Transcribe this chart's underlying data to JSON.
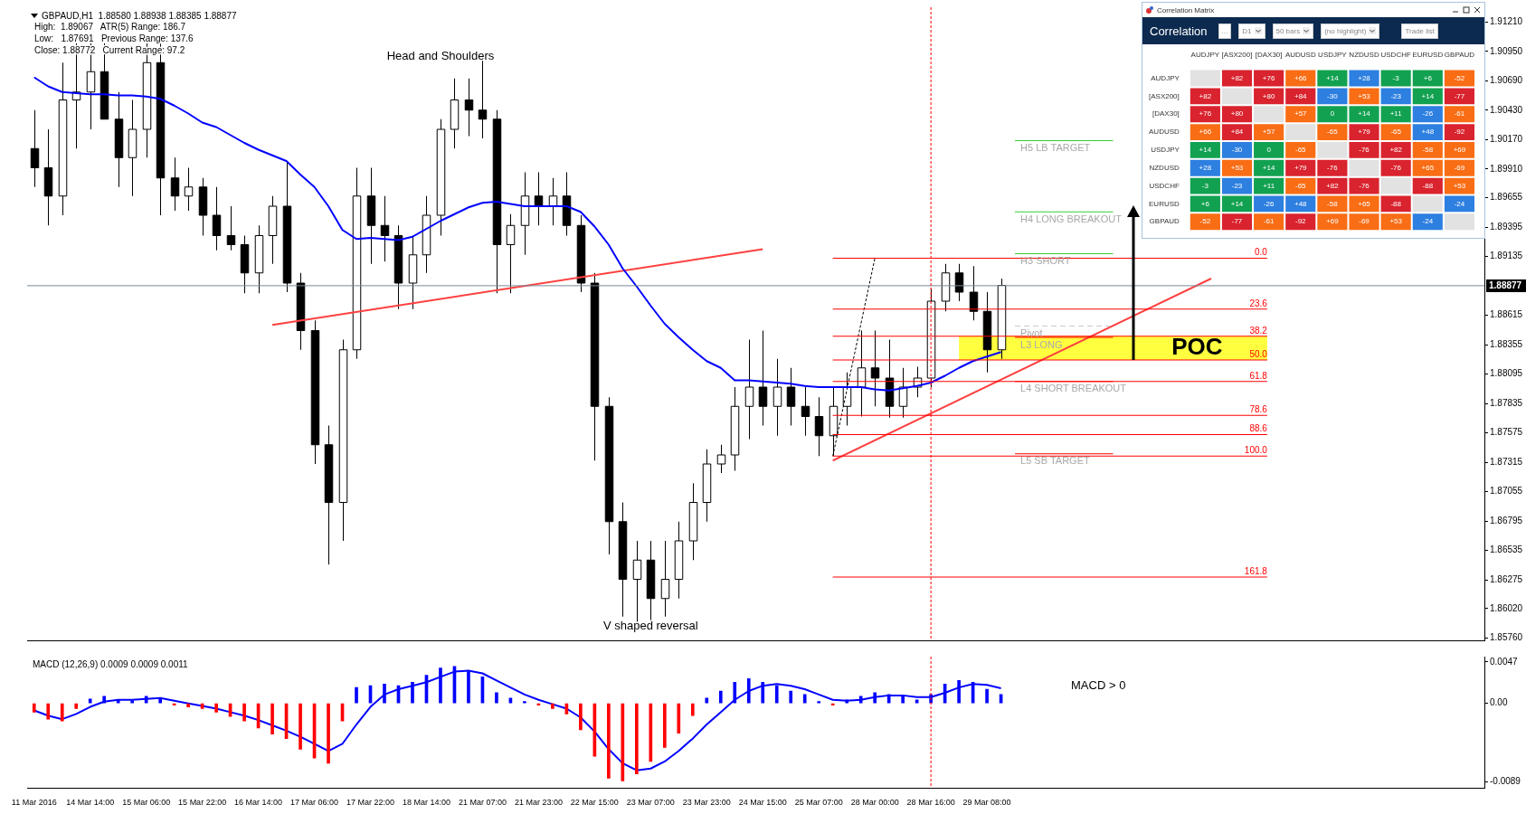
{
  "chart_data": [
    {
      "type": "candlestick",
      "title": "GBPAUD,H1  1.88580 1.88938 1.88385 1.88877",
      "annotations": [
        "High:  1.89067   ATR(5) Range: 186.7",
        "Low:   1.87691   Previous Range: 137.6",
        "Close: 1.88772   Current Range: 97.2",
        "Head and Shoulders",
        "V shaped reversal",
        {
          "text": "0.0",
          "y": 1.8912
        },
        {
          "text": "23.6",
          "y": 1.8867
        },
        {
          "text": "38.2",
          "y": 1.8843
        },
        {
          "text": "50.0",
          "y": 1.8822
        },
        {
          "text": "61.8",
          "y": 1.8803
        },
        {
          "text": "78.6",
          "y": 1.8773
        },
        {
          "text": "88.6",
          "y": 1.8756
        },
        {
          "text": "100.0",
          "y": 1.8737
        },
        {
          "text": "161.8",
          "y": 1.863
        }
      ],
      "categories": [
        "11 Mar 2016",
        null,
        null,
        null,
        "14 Mar 14:00",
        null,
        null,
        null,
        "15 Mar 06:00",
        null,
        null,
        null,
        "15 Mar 22:00",
        null,
        null,
        null,
        "16 Mar 14:00",
        null,
        null,
        null,
        "17 Mar 06:00",
        null,
        null,
        null,
        "17 Mar 22:00",
        null,
        null,
        null,
        "18 Mar 14:00",
        null,
        null,
        null,
        "21 Mar 07:00",
        null,
        null,
        null,
        "21 Mar 23:00",
        null,
        null,
        null,
        "22 Mar 15:00",
        null,
        null,
        null,
        "23 Mar 07:00",
        null,
        null,
        null,
        "23 Mar 23:00",
        null,
        null,
        null,
        "24 Mar 15:00",
        null,
        null,
        null,
        "25 Mar 07:00",
        null,
        null,
        null,
        "28 Mar 00:00",
        null,
        null,
        null,
        "28 Mar 16:00",
        null,
        null,
        null,
        "29 Mar 08:00",
        null,
        null,
        null,
        null,
        null,
        null,
        null,
        null,
        null,
        null,
        null,
        null,
        null,
        null,
        null,
        null,
        null,
        null,
        null,
        null,
        null,
        null,
        null,
        null,
        null,
        null,
        null,
        null,
        null,
        null,
        null,
        null,
        null,
        null,
        null
      ],
      "ohlc": [
        [
          1.9009,
          1.9043,
          1.8975,
          1.8992
        ],
        [
          1.8992,
          1.9026,
          1.8941,
          1.8967
        ],
        [
          1.8967,
          1.9085,
          1.895,
          1.9052
        ],
        [
          1.9052,
          1.9102,
          1.9009,
          1.9059
        ],
        [
          1.9059,
          1.9102,
          1.9026,
          1.9077
        ],
        [
          1.9077,
          1.9102,
          1.9035,
          1.9035
        ],
        [
          1.9035,
          1.9059,
          1.8975,
          1.9001
        ],
        [
          1.9001,
          1.9052,
          1.8967,
          1.9026
        ],
        [
          1.9026,
          1.9102,
          1.9001,
          1.9085
        ],
        [
          1.9085,
          1.9102,
          1.895,
          1.8983
        ],
        [
          1.8983,
          1.9001,
          1.8954,
          1.8967
        ],
        [
          1.8967,
          1.8992,
          1.8954,
          1.8975
        ],
        [
          1.8975,
          1.8983,
          1.8932,
          1.895
        ],
        [
          1.895,
          1.8975,
          1.8919,
          1.8932
        ],
        [
          1.8932,
          1.8958,
          1.8919,
          1.8924
        ],
        [
          1.8924,
          1.8932,
          1.8881,
          1.8899
        ],
        [
          1.8899,
          1.8941,
          1.8881,
          1.8932
        ],
        [
          1.8932,
          1.8967,
          1.8907,
          1.8958
        ],
        [
          1.8958,
          1.8997,
          1.8882,
          1.889
        ],
        [
          1.889,
          1.8899,
          1.8831,
          1.8848
        ],
        [
          1.8848,
          1.8857,
          1.873,
          1.8747
        ],
        [
          1.8747,
          1.8764,
          1.8641,
          1.8696
        ],
        [
          1.8696,
          1.884,
          1.8662,
          1.8831
        ],
        [
          1.8831,
          1.8992,
          1.8823,
          1.8967
        ],
        [
          1.8967,
          1.8992,
          1.8907,
          1.8941
        ],
        [
          1.8941,
          1.8967,
          1.8909,
          1.8932
        ],
        [
          1.8932,
          1.8941,
          1.8867,
          1.889
        ],
        [
          1.889,
          1.8932,
          1.8867,
          1.8915
        ],
        [
          1.8915,
          1.8967,
          1.8899,
          1.895
        ],
        [
          1.895,
          1.9035,
          1.8932,
          1.9026
        ],
        [
          1.9026,
          1.9071,
          1.9009,
          1.9052
        ],
        [
          1.9052,
          1.9071,
          1.902,
          1.9043
        ],
        [
          1.9043,
          1.9094,
          1.9018,
          1.9035
        ],
        [
          1.9035,
          1.9043,
          1.8881,
          1.8924
        ],
        [
          1.8924,
          1.8951,
          1.8881,
          1.8941
        ],
        [
          1.8941,
          1.8988,
          1.8915,
          1.8967
        ],
        [
          1.8967,
          1.8988,
          1.8941,
          1.8958
        ],
        [
          1.8958,
          1.8983,
          1.8941,
          1.8967
        ],
        [
          1.8967,
          1.8988,
          1.8932,
          1.8941
        ],
        [
          1.8941,
          1.895,
          1.8882,
          1.889
        ],
        [
          1.889,
          1.8899,
          1.8733,
          1.8781
        ],
        [
          1.8781,
          1.8789,
          1.865,
          1.8679
        ],
        [
          1.8679,
          1.8696,
          1.8595,
          1.8628
        ],
        [
          1.8628,
          1.8662,
          1.8585,
          1.8645
        ],
        [
          1.8645,
          1.8662,
          1.8585,
          1.8611
        ],
        [
          1.8611,
          1.8662,
          1.8595,
          1.8628
        ],
        [
          1.8628,
          1.8679,
          1.8611,
          1.8662
        ],
        [
          1.8662,
          1.8713,
          1.8645,
          1.8696
        ],
        [
          1.8696,
          1.8743,
          1.8679,
          1.873
        ],
        [
          1.873,
          1.8747,
          1.8722,
          1.8738
        ],
        [
          1.8738,
          1.8798,
          1.8724,
          1.8781
        ],
        [
          1.8781,
          1.884,
          1.8752,
          1.8798
        ],
        [
          1.8798,
          1.8848,
          1.8764,
          1.8781
        ],
        [
          1.8781,
          1.8823,
          1.8755,
          1.8798
        ],
        [
          1.8798,
          1.8815,
          1.8764,
          1.8781
        ],
        [
          1.8781,
          1.8798,
          1.8755,
          1.8772
        ],
        [
          1.8772,
          1.8789,
          1.8737,
          1.8755
        ],
        [
          1.8755,
          1.8798,
          1.8737,
          1.8781
        ],
        [
          1.8781,
          1.8811,
          1.8764,
          1.8798
        ],
        [
          1.8798,
          1.8848,
          1.8772,
          1.8815
        ],
        [
          1.8815,
          1.8848,
          1.8781,
          1.8806
        ],
        [
          1.8806,
          1.884,
          1.8771,
          1.8781
        ],
        [
          1.8781,
          1.8815,
          1.8771,
          1.8798
        ],
        [
          1.8798,
          1.8816,
          1.8789,
          1.8806
        ],
        [
          1.8806,
          1.8885,
          1.8798,
          1.8874
        ],
        [
          1.8874,
          1.8907,
          1.8865,
          1.8899
        ],
        [
          1.8899,
          1.8907,
          1.8874,
          1.8882
        ],
        [
          1.8882,
          1.8905,
          1.8857,
          1.8865
        ],
        [
          1.8865,
          1.8882,
          1.8811,
          1.8831
        ],
        [
          1.8831,
          1.8894,
          1.8823,
          1.8888
        ],
        null,
        null,
        null,
        null,
        null,
        null,
        null,
        null,
        null,
        null,
        null,
        null,
        null,
        null,
        null,
        null,
        null,
        null,
        null,
        null,
        null,
        null,
        null,
        null,
        null,
        null,
        null,
        null,
        null,
        null,
        null,
        null,
        null,
        null
      ],
      "series": [
        {
          "type": "line",
          "color": "#0000ff",
          "values": [
            1.9072,
            1.9064,
            1.9059,
            1.9058,
            1.9057,
            1.9057,
            1.9056,
            1.9056,
            1.9055,
            1.9053,
            1.9047,
            1.904,
            1.9032,
            1.9028,
            1.9021,
            1.9014,
            1.9008,
            1.9003,
            1.8998,
            1.8986,
            1.8975,
            1.8958,
            1.8937,
            1.8929,
            1.893,
            1.8929,
            1.8928,
            1.8931,
            1.8938,
            1.8945,
            1.8951,
            1.8957,
            1.8961,
            1.8962,
            1.896,
            1.8958,
            1.8958,
            1.8958,
            1.8958,
            1.8953,
            1.894,
            1.8924,
            1.8903,
            1.8887,
            1.887,
            1.8854,
            1.8842,
            1.8831,
            1.8821,
            1.8815,
            1.8804,
            1.8804,
            1.8803,
            1.8802,
            1.8801,
            1.8799,
            1.8798,
            1.8798,
            1.8798,
            1.8798,
            1.8796,
            1.8795,
            1.8797,
            1.8799,
            1.8802,
            1.8808,
            1.8815,
            1.8821,
            1.8825,
            1.8829,
            null,
            null,
            null,
            null,
            null,
            null,
            null,
            null,
            null,
            null,
            null,
            null,
            null,
            null,
            null,
            null,
            null,
            null,
            null,
            null,
            null,
            null,
            null,
            null,
            null,
            null,
            null,
            null,
            null,
            null,
            null,
            null,
            null,
            null
          ]
        },
        {
          "type": "line",
          "color": "#ff4040",
          "values": [
            null,
            null,
            null,
            null,
            null,
            null,
            null,
            null,
            null,
            null,
            null,
            null,
            null,
            null,
            null,
            null,
            null,
            1.8853,
            null,
            null,
            null,
            null,
            null,
            null,
            null,
            null,
            null,
            null,
            null,
            null,
            null,
            null,
            null,
            null,
            null,
            null,
            null,
            null,
            null,
            null,
            null,
            null,
            null,
            null,
            null,
            null,
            null,
            null,
            null,
            null,
            null,
            null,
            1.892,
            null,
            null,
            null,
            null,
            null,
            null,
            null,
            null,
            null,
            null,
            null,
            null,
            null,
            null,
            null,
            null,
            null,
            null,
            null,
            null,
            null,
            null,
            null,
            null,
            null,
            null,
            null,
            null,
            null,
            null,
            null,
            null,
            null,
            null,
            null,
            null,
            null,
            null,
            null,
            null,
            null,
            null,
            null,
            null,
            null,
            null,
            null,
            null,
            null,
            null,
            null
          ]
        },
        {
          "type": "line",
          "color": "#ff4040",
          "values": [
            null,
            null,
            null,
            null,
            null,
            null,
            null,
            null,
            null,
            null,
            null,
            null,
            null,
            null,
            null,
            null,
            null,
            null,
            null,
            null,
            null,
            null,
            null,
            null,
            null,
            null,
            null,
            null,
            null,
            null,
            null,
            null,
            null,
            null,
            null,
            null,
            null,
            null,
            null,
            null,
            null,
            null,
            null,
            null,
            null,
            null,
            null,
            null,
            null,
            null,
            null,
            null,
            null,
            null,
            null,
            null,
            null,
            1.8733,
            null,
            null,
            null,
            null,
            null,
            null,
            null,
            null,
            null,
            null,
            null,
            null,
            null,
            null,
            null,
            null,
            null,
            null,
            null,
            null,
            null,
            null,
            null,
            null,
            null,
            null,
            1.8894,
            null,
            null,
            null,
            null,
            null,
            null,
            null,
            null,
            null,
            null,
            null,
            null,
            null,
            null,
            null,
            null,
            null,
            null,
            null
          ]
        },
        {
          "type": "line",
          "color": "#000000",
          "line_style": "dotted",
          "values": [
            null,
            null,
            null,
            null,
            null,
            null,
            null,
            null,
            null,
            null,
            null,
            null,
            null,
            null,
            null,
            null,
            null,
            null,
            null,
            null,
            null,
            null,
            null,
            null,
            null,
            null,
            null,
            null,
            null,
            null,
            null,
            null,
            null,
            null,
            null,
            null,
            null,
            null,
            null,
            null,
            null,
            null,
            null,
            null,
            null,
            null,
            null,
            null,
            null,
            null,
            null,
            null,
            null,
            null,
            null,
            null,
            null,
            1.8737,
            null,
            null,
            1.8912,
            null,
            null,
            null,
            null,
            null,
            null,
            null,
            null,
            null,
            null,
            null,
            null,
            null,
            null,
            null,
            null,
            null,
            null,
            null,
            null,
            null,
            null,
            null,
            null,
            null,
            null,
            null,
            null,
            null,
            null,
            null,
            null,
            null,
            null,
            null,
            null,
            null,
            null,
            null,
            null,
            null,
            null,
            null
          ]
        }
      ],
      "ylim": [
        1.8574,
        1.9134
      ],
      "yticks": [
        {
          "value": 1.8576,
          "label": "1.85760"
        },
        {
          "value": 1.8602,
          "label": "1.86020"
        },
        {
          "value": 1.86275,
          "label": "1.86275"
        },
        {
          "value": 1.86535,
          "label": "1.86535"
        },
        {
          "value": 1.86795,
          "label": "1.86795"
        },
        {
          "value": 1.87055,
          "label": "1.87055"
        },
        {
          "value": 1.87315,
          "label": "1.87315"
        },
        {
          "value": 1.87575,
          "label": "1.87575"
        },
        {
          "value": 1.87835,
          "label": "1.87835"
        },
        {
          "value": 1.88095,
          "label": "1.88095"
        },
        {
          "value": 1.88355,
          "label": "1.88355"
        },
        {
          "value": 1.88615,
          "label": "1.88615"
        },
        {
          "value": 1.89135,
          "label": "1.89135"
        },
        {
          "value": 1.89395,
          "label": "1.89395"
        },
        {
          "value": 1.89655,
          "label": "1.89655"
        },
        {
          "value": 1.8991,
          "label": "1.89910"
        },
        {
          "value": 1.9017,
          "label": "1.90170"
        },
        {
          "value": 1.9043,
          "label": "1.90430"
        },
        {
          "value": 1.9069,
          "label": "1.90690"
        },
        {
          "value": 1.9095,
          "label": "1.90950"
        },
        {
          "value": 1.9121,
          "label": "1.91210"
        }
      ],
      "tick_labels": "y",
      "ref_lines": [
        {
          "axis": "y",
          "value": 1.8912,
          "color": "#ff0000"
        },
        {
          "axis": "y",
          "value": 1.8867,
          "color": "#ff0000"
        },
        {
          "axis": "y",
          "value": 1.8843,
          "color": "#ff0000"
        },
        {
          "axis": "y",
          "value": 1.8822,
          "color": "#ff0000"
        },
        {
          "axis": "y",
          "value": 1.8803,
          "color": "#ff0000"
        },
        {
          "axis": "y",
          "value": 1.8773,
          "color": "#ff0000"
        },
        {
          "axis": "y",
          "value": 1.8756,
          "color": "#ff0000"
        },
        {
          "axis": "y",
          "value": 1.8737,
          "color": "#ff0000"
        },
        {
          "axis": "y",
          "value": 1.863,
          "color": "#ff0000"
        },
        {
          "axis": "y",
          "value": 1.88877,
          "label": "1.88877",
          "color": "#778899"
        },
        {
          "axis": "y",
          "value": 1.9016,
          "label": "H5 LB TARGET",
          "color": "#33cc33"
        },
        {
          "axis": "y",
          "value": 1.8953,
          "label": "H4 LONG BREAKOUT",
          "color": "#33cc33"
        },
        {
          "axis": "y",
          "value": 1.8916,
          "label": "H3 SHORT",
          "color": "#33cc33"
        },
        {
          "axis": "y",
          "value": 1.8852,
          "label": "Pivot",
          "color": "#c8c8c8",
          "line_style": "dashed"
        },
        {
          "axis": "y",
          "value": 1.8842,
          "label": "L3 LONG",
          "color": "#ff0000"
        },
        {
          "axis": "y",
          "value": 1.8803,
          "label": "L4 SHORT BREAKOUT",
          "color": "#ff0000"
        },
        {
          "axis": "y",
          "value": 1.8739,
          "label": "L5 SB TARGET",
          "color": "#ff0000"
        },
        {
          "axis": "x",
          "value": "28 Mar 16:00",
          "color": "#ff0000",
          "line_style": "dotted"
        }
      ],
      "bands": [
        {
          "axis": "y",
          "from": 1.8822,
          "to": 1.8843,
          "label": "POC",
          "color": "#ffff40"
        }
      ]
    },
    {
      "type": "bar",
      "title": "MACD (12,26,9) 0.0009 0.0009 0.0011",
      "annotations": [
        "MACD > 0"
      ],
      "categories": [
        "11 Mar 2016",
        null,
        null,
        null,
        "14 Mar 14:00",
        null,
        null,
        null,
        "15 Mar 06:00",
        null,
        null,
        null,
        "15 Mar 22:00",
        null,
        null,
        null,
        "16 Mar 14:00",
        null,
        null,
        null,
        "17 Mar 06:00",
        null,
        null,
        null,
        "17 Mar 22:00",
        null,
        null,
        null,
        "18 Mar 14:00",
        null,
        null,
        null,
        "21 Mar 07:00",
        null,
        null,
        null,
        "21 Mar 23:00",
        null,
        null,
        null,
        "22 Mar 15:00",
        null,
        null,
        null,
        "23 Mar 07:00",
        null,
        null,
        null,
        "23 Mar 23:00",
        null,
        null,
        null,
        "24 Mar 15:00",
        null,
        null,
        null,
        "25 Mar 07:00",
        null,
        null,
        null,
        "28 Mar 00:00",
        null,
        null,
        null,
        "28 Mar 16:00",
        null,
        null,
        null,
        "29 Mar 08:00",
        null,
        null,
        null,
        null,
        null,
        null,
        null,
        null,
        null,
        null,
        null,
        null,
        null,
        null,
        null,
        null,
        null,
        null,
        null,
        null,
        null,
        null,
        null,
        null,
        null,
        null,
        null,
        null,
        null,
        null,
        null,
        null,
        null,
        null,
        null
      ],
      "series": [
        {
          "type": "bar",
          "colors": [
            "#ff0000",
            "#ff0000",
            "#ff0000",
            "#ff0000",
            "#0000ff",
            "#0000ff",
            "#0000ff",
            "#0000ff",
            "#0000ff",
            "#0000ff",
            "#ff0000",
            "#ff0000",
            "#ff0000",
            "#ff0000",
            "#ff0000",
            "#ff0000",
            "#ff0000",
            "#ff0000",
            "#ff0000",
            "#ff0000",
            "#ff0000",
            "#ff0000",
            "#ff0000",
            "#0000ff",
            "#0000ff",
            "#0000ff",
            "#0000ff",
            "#0000ff",
            "#0000ff",
            "#0000ff",
            "#0000ff",
            "#0000ff",
            "#0000ff",
            "#0000ff",
            "#0000ff",
            "#0000ff",
            "#ff0000",
            "#ff0000",
            "#ff0000",
            "#ff0000",
            "#ff0000",
            "#ff0000",
            "#ff0000",
            "#ff0000",
            "#ff0000",
            "#ff0000",
            "#ff0000",
            "#ff0000",
            "#0000ff",
            "#0000ff",
            "#0000ff",
            "#0000ff",
            "#0000ff",
            "#0000ff",
            "#0000ff",
            "#0000ff",
            "#0000ff",
            "#ff0000",
            "#0000ff",
            "#0000ff",
            "#0000ff",
            "#0000ff",
            "#0000ff",
            "#0000ff",
            "#0000ff",
            "#0000ff",
            "#0000ff",
            "#0000ff",
            "#0000ff",
            "#0000ff",
            null,
            null,
            null,
            null,
            null,
            null,
            null,
            null,
            null,
            null,
            null,
            null,
            null,
            null,
            null,
            null,
            null,
            null,
            null,
            null,
            null,
            null,
            null,
            null,
            null,
            null,
            null,
            null,
            null,
            null,
            null,
            null,
            null,
            null
          ],
          "values": [
            -0.001,
            -0.0018,
            -0.002,
            -0.0006,
            0.0005,
            0.0008,
            0.0004,
            0.0003,
            0.0008,
            0.0006,
            -0.0002,
            -0.0004,
            -0.0006,
            -0.001,
            -0.0015,
            -0.002,
            -0.0028,
            -0.0035,
            -0.004,
            -0.0052,
            -0.0062,
            -0.0068,
            -0.002,
            0.0018,
            0.002,
            0.0022,
            0.002,
            0.0024,
            0.0032,
            0.004,
            0.0042,
            0.0036,
            0.003,
            0.0012,
            0.0006,
            0.0002,
            -0.0002,
            -0.0006,
            -0.0012,
            -0.003,
            -0.006,
            -0.0085,
            -0.0088,
            -0.008,
            -0.0066,
            -0.005,
            -0.0034,
            -0.0014,
            0.0006,
            0.0014,
            0.0024,
            0.0028,
            0.0024,
            0.002,
            0.0014,
            0.001,
            0.0002,
            -0.0002,
            0.0004,
            0.0008,
            0.0012,
            0.001,
            0.0008,
            0.0004,
            0.001,
            0.0022,
            0.0026,
            0.0024,
            0.0016,
            0.001,
            null,
            null,
            null,
            null,
            null,
            null,
            null,
            null,
            null,
            null,
            null,
            null,
            null,
            null,
            null,
            null,
            null,
            null,
            null,
            null,
            null,
            null,
            null,
            null,
            null,
            null,
            null,
            null,
            null,
            null,
            null,
            null,
            null,
            null
          ]
        },
        {
          "type": "line",
          "color": "#0000ff",
          "values": [
            -0.0008,
            -0.0014,
            -0.0018,
            -0.0012,
            -0.0004,
            0.0002,
            0.0004,
            0.0004,
            0.0005,
            0.0006,
            0.0003,
            0,
            -0.0003,
            -0.0006,
            -0.001,
            -0.0014,
            -0.0019,
            -0.0025,
            -0.0031,
            -0.0038,
            -0.0046,
            -0.0054,
            -0.0046,
            -0.0024,
            -0.0004,
            0.001,
            0.0016,
            0.002,
            0.0024,
            0.003,
            0.0036,
            0.0037,
            0.0034,
            0.0026,
            0.0018,
            0.001,
            0.0004,
            -0.0001,
            -0.0006,
            -0.0016,
            -0.0032,
            -0.0052,
            -0.0068,
            -0.0076,
            -0.0074,
            -0.0066,
            -0.0054,
            -0.004,
            -0.0024,
            -0.001,
            0.0004,
            0.0014,
            0.002,
            0.0022,
            0.002,
            0.0016,
            0.001,
            0.0004,
            0.0003,
            0.0004,
            0.0007,
            0.0009,
            0.0009,
            0.0007,
            0.0007,
            0.0012,
            0.0018,
            0.0022,
            0.0021,
            0.0017,
            null,
            null,
            null,
            null,
            null,
            null,
            null,
            null,
            null,
            null,
            null,
            null,
            null,
            null,
            null,
            null,
            null,
            null,
            null,
            null,
            null,
            null,
            null,
            null,
            null,
            null,
            null,
            null,
            null,
            null,
            null,
            null,
            null,
            null
          ]
        }
      ],
      "ylim": [
        -0.0096,
        0.0053
      ],
      "yticks": [
        -0.0089,
        {
          "value": 0,
          "label": "0.00"
        },
        0.0047
      ],
      "ref_lines": [
        {
          "axis": "x",
          "value": "28 Mar 16:00",
          "color": "#ff0000",
          "line_style": "dotted"
        }
      ]
    },
    {
      "type": "heatmap",
      "title": "Correlation",
      "annotations": [
        "Correlation Matrix",
        "...",
        "D1",
        "50 bars",
        "(no highlight)",
        "Trade list"
      ],
      "categories": [
        "AUDJPY",
        "[ASX200]",
        "[DAX30]",
        "AUDUSD",
        "USDJPY",
        "NZDUSD",
        "USDCHF",
        "EURUSD",
        "GBPAUD"
      ],
      "y_categories": [
        "AUDJPY",
        "[ASX200]",
        "[DAX30]",
        "AUDUSD",
        "USDJPY",
        "NZDUSD",
        "USDCHF",
        "EURUSD",
        "GBPAUD"
      ],
      "cells": [
        [
          null,
          82,
          76,
          66,
          14,
          28,
          -3,
          6,
          -52
        ],
        [
          82,
          null,
          80,
          84,
          -30,
          53,
          -23,
          14,
          -77
        ],
        [
          76,
          80,
          null,
          57,
          0,
          14,
          11,
          -26,
          -61
        ],
        [
          66,
          84,
          57,
          null,
          -65,
          79,
          -65,
          48,
          -92
        ],
        [
          14,
          -30,
          0,
          -65,
          null,
          -76,
          82,
          -58,
          69
        ],
        [
          28,
          53,
          14,
          79,
          -76,
          null,
          -76,
          65,
          -69
        ],
        [
          -3,
          -23,
          11,
          -65,
          82,
          -76,
          null,
          -88,
          53
        ],
        [
          6,
          14,
          -26,
          48,
          -58,
          65,
          -88,
          null,
          -24
        ],
        [
          -52,
          -77,
          -61,
          -92,
          69,
          -69,
          53,
          -24,
          null
        ]
      ],
      "cell_labels": [
        [
          null,
          "+82",
          "+76",
          "+66",
          "+14",
          "+28",
          "-3",
          "+6",
          "-52"
        ],
        [
          "+82",
          null,
          "+80",
          "+84",
          "-30",
          "+53",
          "-23",
          "+14",
          "-77"
        ],
        [
          "+76",
          "+80",
          null,
          "+57",
          "0",
          "+14",
          "+11",
          "-26",
          "-61"
        ],
        [
          "+66",
          "+84",
          "+57",
          null,
          "-65",
          "+79",
          "-65",
          "+48",
          "-92"
        ],
        [
          "+14",
          "-30",
          "0",
          "-65",
          null,
          "-76",
          "+82",
          "-58",
          "+69"
        ],
        [
          "+28",
          "+53",
          "+14",
          "+79",
          "-76",
          null,
          "-76",
          "+65",
          "-69"
        ],
        [
          "-3",
          "-23",
          "+11",
          "-65",
          "+82",
          "-76",
          null,
          "-88",
          "+53"
        ],
        [
          "+6",
          "+14",
          "-26",
          "+48",
          "-58",
          "+65",
          "-88",
          null,
          "-24"
        ],
        [
          "-52",
          "-77",
          "-61",
          "-92",
          "+69",
          "-69",
          "+53",
          "-24",
          null
        ]
      ]
    }
  ]
}
